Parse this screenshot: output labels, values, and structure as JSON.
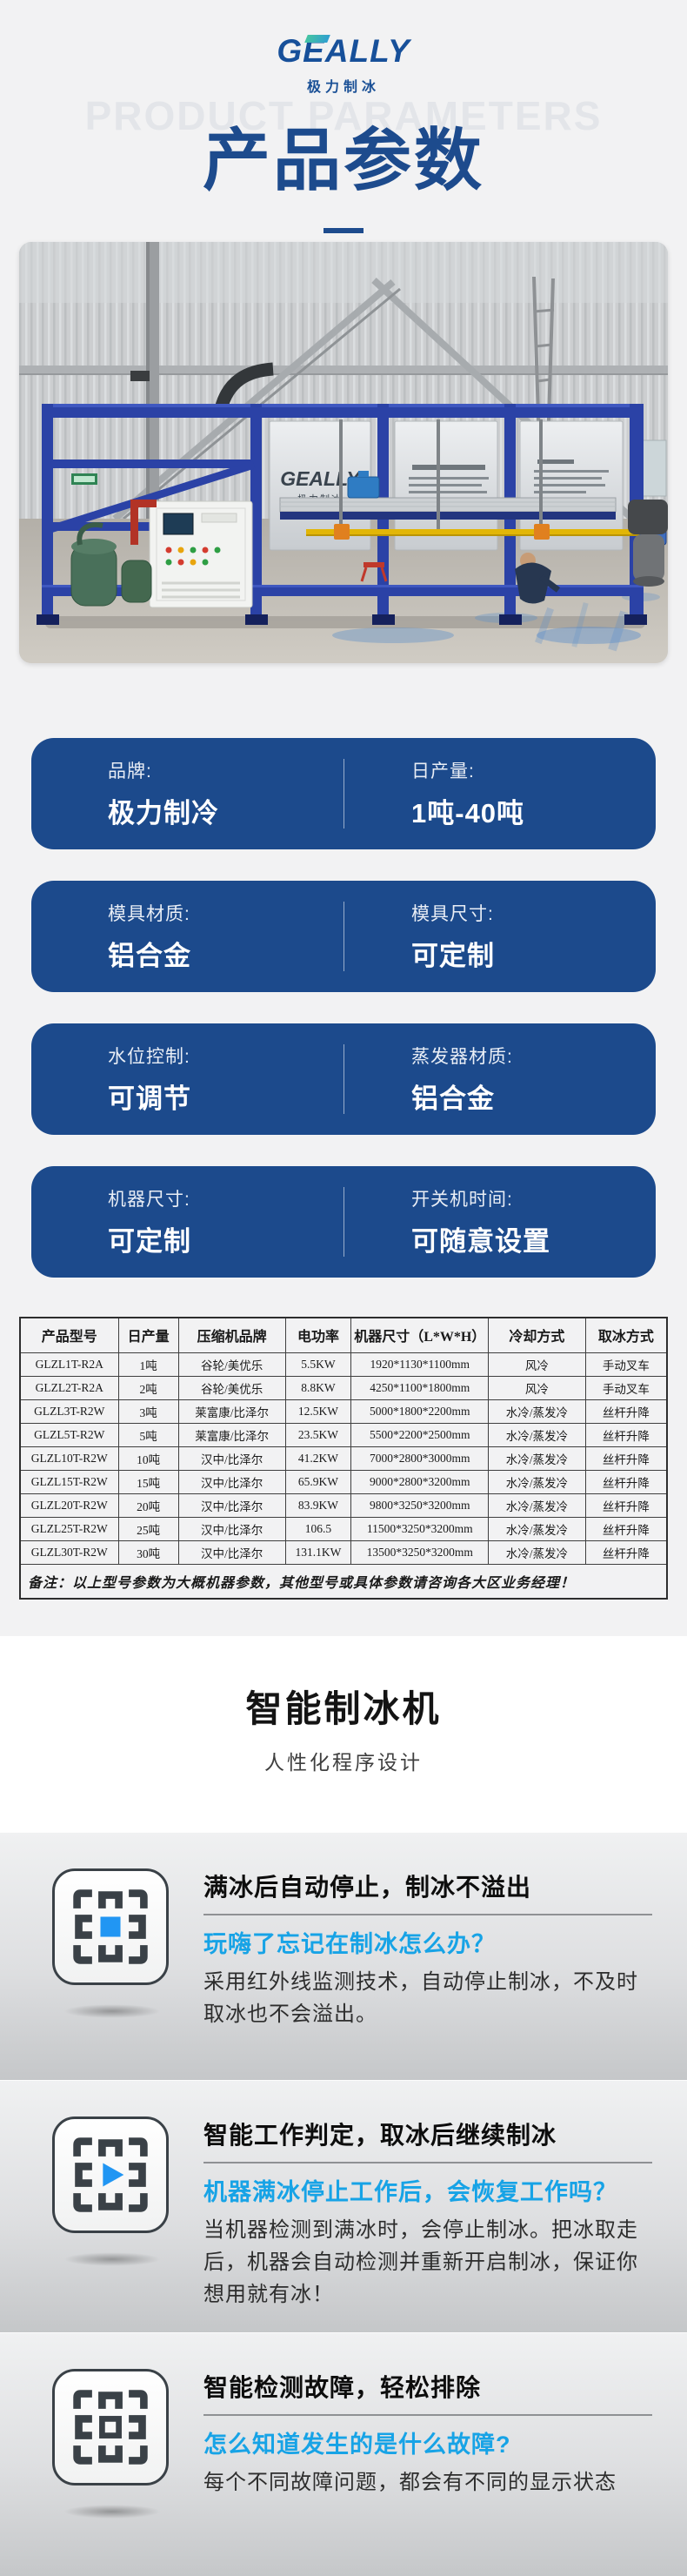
{
  "logo": {
    "text": "GEALLY",
    "subtext": "极力制冰"
  },
  "hero": {
    "watermark": "PRODUCT PARAMETERS",
    "title": "产品参数"
  },
  "photo": {
    "panel_logo": "GEALLY",
    "panel_logo_sub": "极力制冰"
  },
  "spec_cards": [
    {
      "left": {
        "label": "品牌:",
        "value": "极力制冷"
      },
      "right": {
        "label": "日产量:",
        "value": "1吨-40吨"
      }
    },
    {
      "left": {
        "label": "模具材质:",
        "value": "铝合金"
      },
      "right": {
        "label": "模具尺寸:",
        "value": "可定制"
      }
    },
    {
      "left": {
        "label": "水位控制:",
        "value": "可调节"
      },
      "right": {
        "label": "蒸发器材质:",
        "value": "铝合金"
      }
    },
    {
      "left": {
        "label": "机器尺寸:",
        "value": "可定制"
      },
      "right": {
        "label": "开关机时间:",
        "value": "可随意设置"
      }
    }
  ],
  "table": {
    "headers": [
      "产品型号",
      "日产量",
      "压缩机品牌",
      "电功率",
      "机器尺寸（L*W*H）",
      "冷却方式",
      "取冰方式"
    ],
    "rows": [
      [
        "GLZL1T-R2A",
        "1吨",
        "谷轮/美优乐",
        "5.5KW",
        "1920*1130*1100mm",
        "风冷",
        "手动叉车"
      ],
      [
        "GLZL2T-R2A",
        "2吨",
        "谷轮/美优乐",
        "8.8KW",
        "4250*1100*1800mm",
        "风冷",
        "手动叉车"
      ],
      [
        "GLZL3T-R2W",
        "3吨",
        "莱富康/比泽尔",
        "12.5KW",
        "5000*1800*2200mm",
        "水冷/蒸发冷",
        "丝杆升降"
      ],
      [
        "GLZL5T-R2W",
        "5吨",
        "莱富康/比泽尔",
        "23.5KW",
        "5500*2200*2500mm",
        "水冷/蒸发冷",
        "丝杆升降"
      ],
      [
        "GLZL10T-R2W",
        "10吨",
        "汉中/比泽尔",
        "41.2KW",
        "7000*2800*3000mm",
        "水冷/蒸发冷",
        "丝杆升降"
      ],
      [
        "GLZL15T-R2W",
        "15吨",
        "汉中/比泽尔",
        "65.9KW",
        "9000*2800*3200mm",
        "水冷/蒸发冷",
        "丝杆升降"
      ],
      [
        "GLZL20T-R2W",
        "20吨",
        "汉中/比泽尔",
        "83.9KW",
        "9800*3250*3200mm",
        "水冷/蒸发冷",
        "丝杆升降"
      ],
      [
        "GLZL25T-R2W",
        "25吨",
        "汉中/比泽尔",
        "106.5",
        "11500*3250*3200mm",
        "水冷/蒸发冷",
        "丝杆升降"
      ],
      [
        "GLZL30T-R2W",
        "30吨",
        "汉中/比泽尔",
        "131.1KW",
        "13500*3250*3200mm",
        "水冷/蒸发冷",
        "丝杆升降"
      ]
    ],
    "note": "备注：以上型号参数为大概机器参数，其他型号或具体参数请咨询各大区业务经理！"
  },
  "smart": {
    "title": "智能制冰机",
    "subtitle": "人性化程序设计"
  },
  "features": [
    {
      "icon": "grid-center-filled-icon",
      "title": "满冰后自动停止，制冰不溢出",
      "question": "玩嗨了忘记在制冰怎么办？",
      "description": "采用红外线监测技术，自动停止制冰，不及时取冰也不会溢出。"
    },
    {
      "icon": "grid-play-icon",
      "title": "智能工作判定，取冰后继续制冰",
      "question": "机器满冰停止工作后，会恢复工作吗？",
      "description": "当机器检测到满冰时，会停止制冰。把冰取走后，机器会自动检测并重新开启制冰，保证你想用就有冰！"
    },
    {
      "icon": "grid-center-outline-icon",
      "title": "智能检测故障，轻松排除",
      "question": "怎么知道发生的是什么故障?",
      "description": "每个不同故障问题，都会有不同的显示状态"
    }
  ],
  "colors": {
    "navy": "#1c4a8c",
    "feature_blue": "#17a3e6",
    "icon_blue": "#2196f3",
    "machine_blue": "#2b42a6",
    "background": "#f2f2f3"
  }
}
